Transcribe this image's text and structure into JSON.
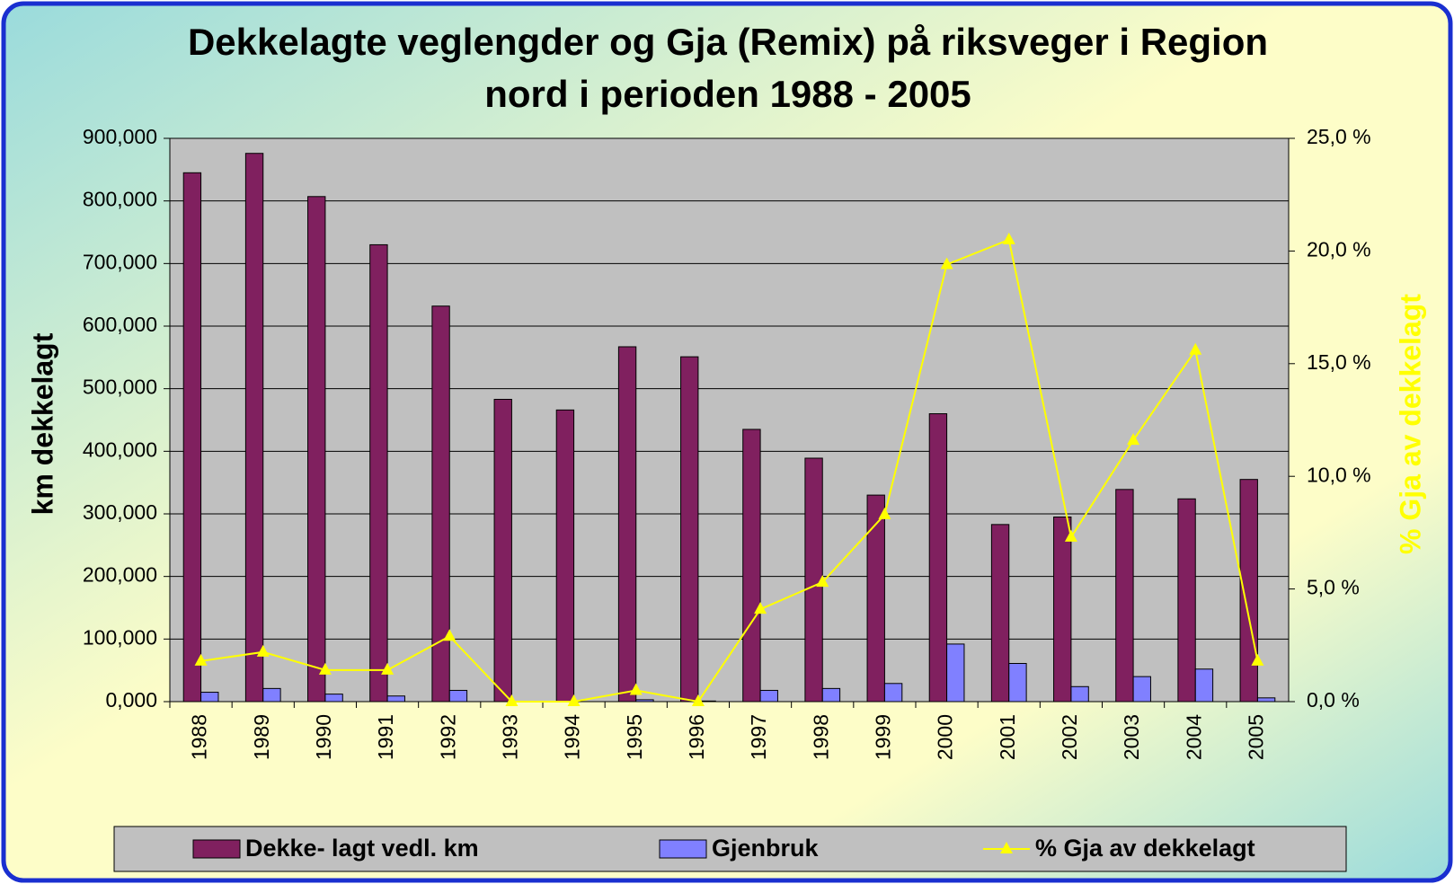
{
  "chart_data": {
    "type": "bar_line",
    "title": "Dekkelagte veglengder og Gja (Remix) på riksveger i Region nord i perioden 1988 - 2005",
    "ylabel": "km dekkelagt",
    "y2label": "% Gja av dekkelagt",
    "categories": [
      "1988",
      "1989",
      "1990",
      "1991",
      "1992",
      "1993",
      "1994",
      "1995",
      "1996",
      "1997",
      "1998",
      "1999",
      "2000",
      "2001",
      "2002",
      "2003",
      "2004",
      "2005"
    ],
    "series": [
      {
        "name": "Dekke- lagt  vedl. km",
        "color": "#80205f",
        "type": "bar",
        "values": [
          845000,
          876000,
          807000,
          730000,
          632000,
          483000,
          466000,
          567000,
          551000,
          435000,
          389000,
          330000,
          460000,
          283000,
          295000,
          339000,
          324000,
          355000
        ]
      },
      {
        "name": "Gjenbruk",
        "color": "#8080ff",
        "type": "bar",
        "values": [
          15000,
          21000,
          12000,
          9000,
          18000,
          0,
          0,
          3000,
          1000,
          18000,
          21000,
          29000,
          92000,
          61000,
          24000,
          40000,
          52000,
          6000
        ]
      },
      {
        "name": "% Gja av dekkelagt",
        "color": "#ffff00",
        "type": "line",
        "axis": "y2",
        "values": [
          1.8,
          2.2,
          1.4,
          1.4,
          2.9,
          0,
          0,
          0.5,
          0,
          4.1,
          5.3,
          8.3,
          19.4,
          20.5,
          7.3,
          11.6,
          15.6,
          1.8
        ]
      }
    ],
    "ylim": [
      0,
      900000
    ],
    "yticks": [
      {
        "value": 0,
        "label": "0,000"
      },
      {
        "value": 100000,
        "label": "100,000"
      },
      {
        "value": 200000,
        "label": "200,000"
      },
      {
        "value": 300000,
        "label": "300,000"
      },
      {
        "value": 400000,
        "label": "400,000"
      },
      {
        "value": 500000,
        "label": "500,000"
      },
      {
        "value": 600000,
        "label": "600,000"
      },
      {
        "value": 700000,
        "label": "700,000"
      },
      {
        "value": 800000,
        "label": "800,000"
      },
      {
        "value": 900000,
        "label": "900,000"
      }
    ],
    "y2lim": [
      0,
      25
    ],
    "y2ticks": [
      {
        "value": 0,
        "label": "0,0 %"
      },
      {
        "value": 5,
        "label": "5,0 %"
      },
      {
        "value": 10,
        "label": "10,0 %"
      },
      {
        "value": 15,
        "label": "15,0 %"
      },
      {
        "value": 20,
        "label": "20,0 %"
      },
      {
        "value": 25,
        "label": "25,0 %"
      }
    ],
    "grid": true,
    "legend": "bottom"
  }
}
